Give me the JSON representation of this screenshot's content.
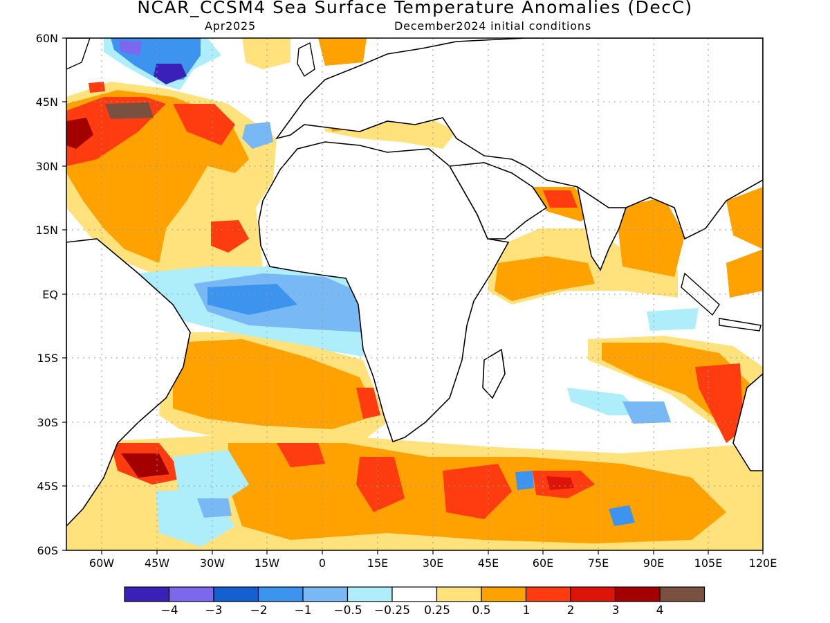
{
  "title": "NCAR_CCSM4 Sea Surface Temperature Anomalies (DecC)",
  "subtitle_left": "Apr2025",
  "subtitle_right": "December2024 initial conditions",
  "lat_labels": [
    "60N",
    "45N",
    "30N",
    "15N",
    "EQ",
    "15S",
    "30S",
    "45S",
    "60S"
  ],
  "lon_labels": [
    "60W",
    "45W",
    "30W",
    "15W",
    "0",
    "15E",
    "30E",
    "45E",
    "60E",
    "75E",
    "90E",
    "105E",
    "120E"
  ],
  "colorbar": {
    "colors": [
      "#3a1fb8",
      "#7b68ee",
      "#1560d0",
      "#3d94ef",
      "#78b8f5",
      "#aeeefa",
      "#ffffff",
      "#ffe27c",
      "#ffa200",
      "#ff3c10",
      "#dd1408",
      "#a30000",
      "#7a5040"
    ],
    "labels": [
      "-4",
      "-3",
      "-2",
      "-1",
      "-0.5",
      "-0.25",
      "0.25",
      "0.5",
      "1",
      "2",
      "3",
      "4"
    ]
  },
  "legend_units": "DecC"
}
